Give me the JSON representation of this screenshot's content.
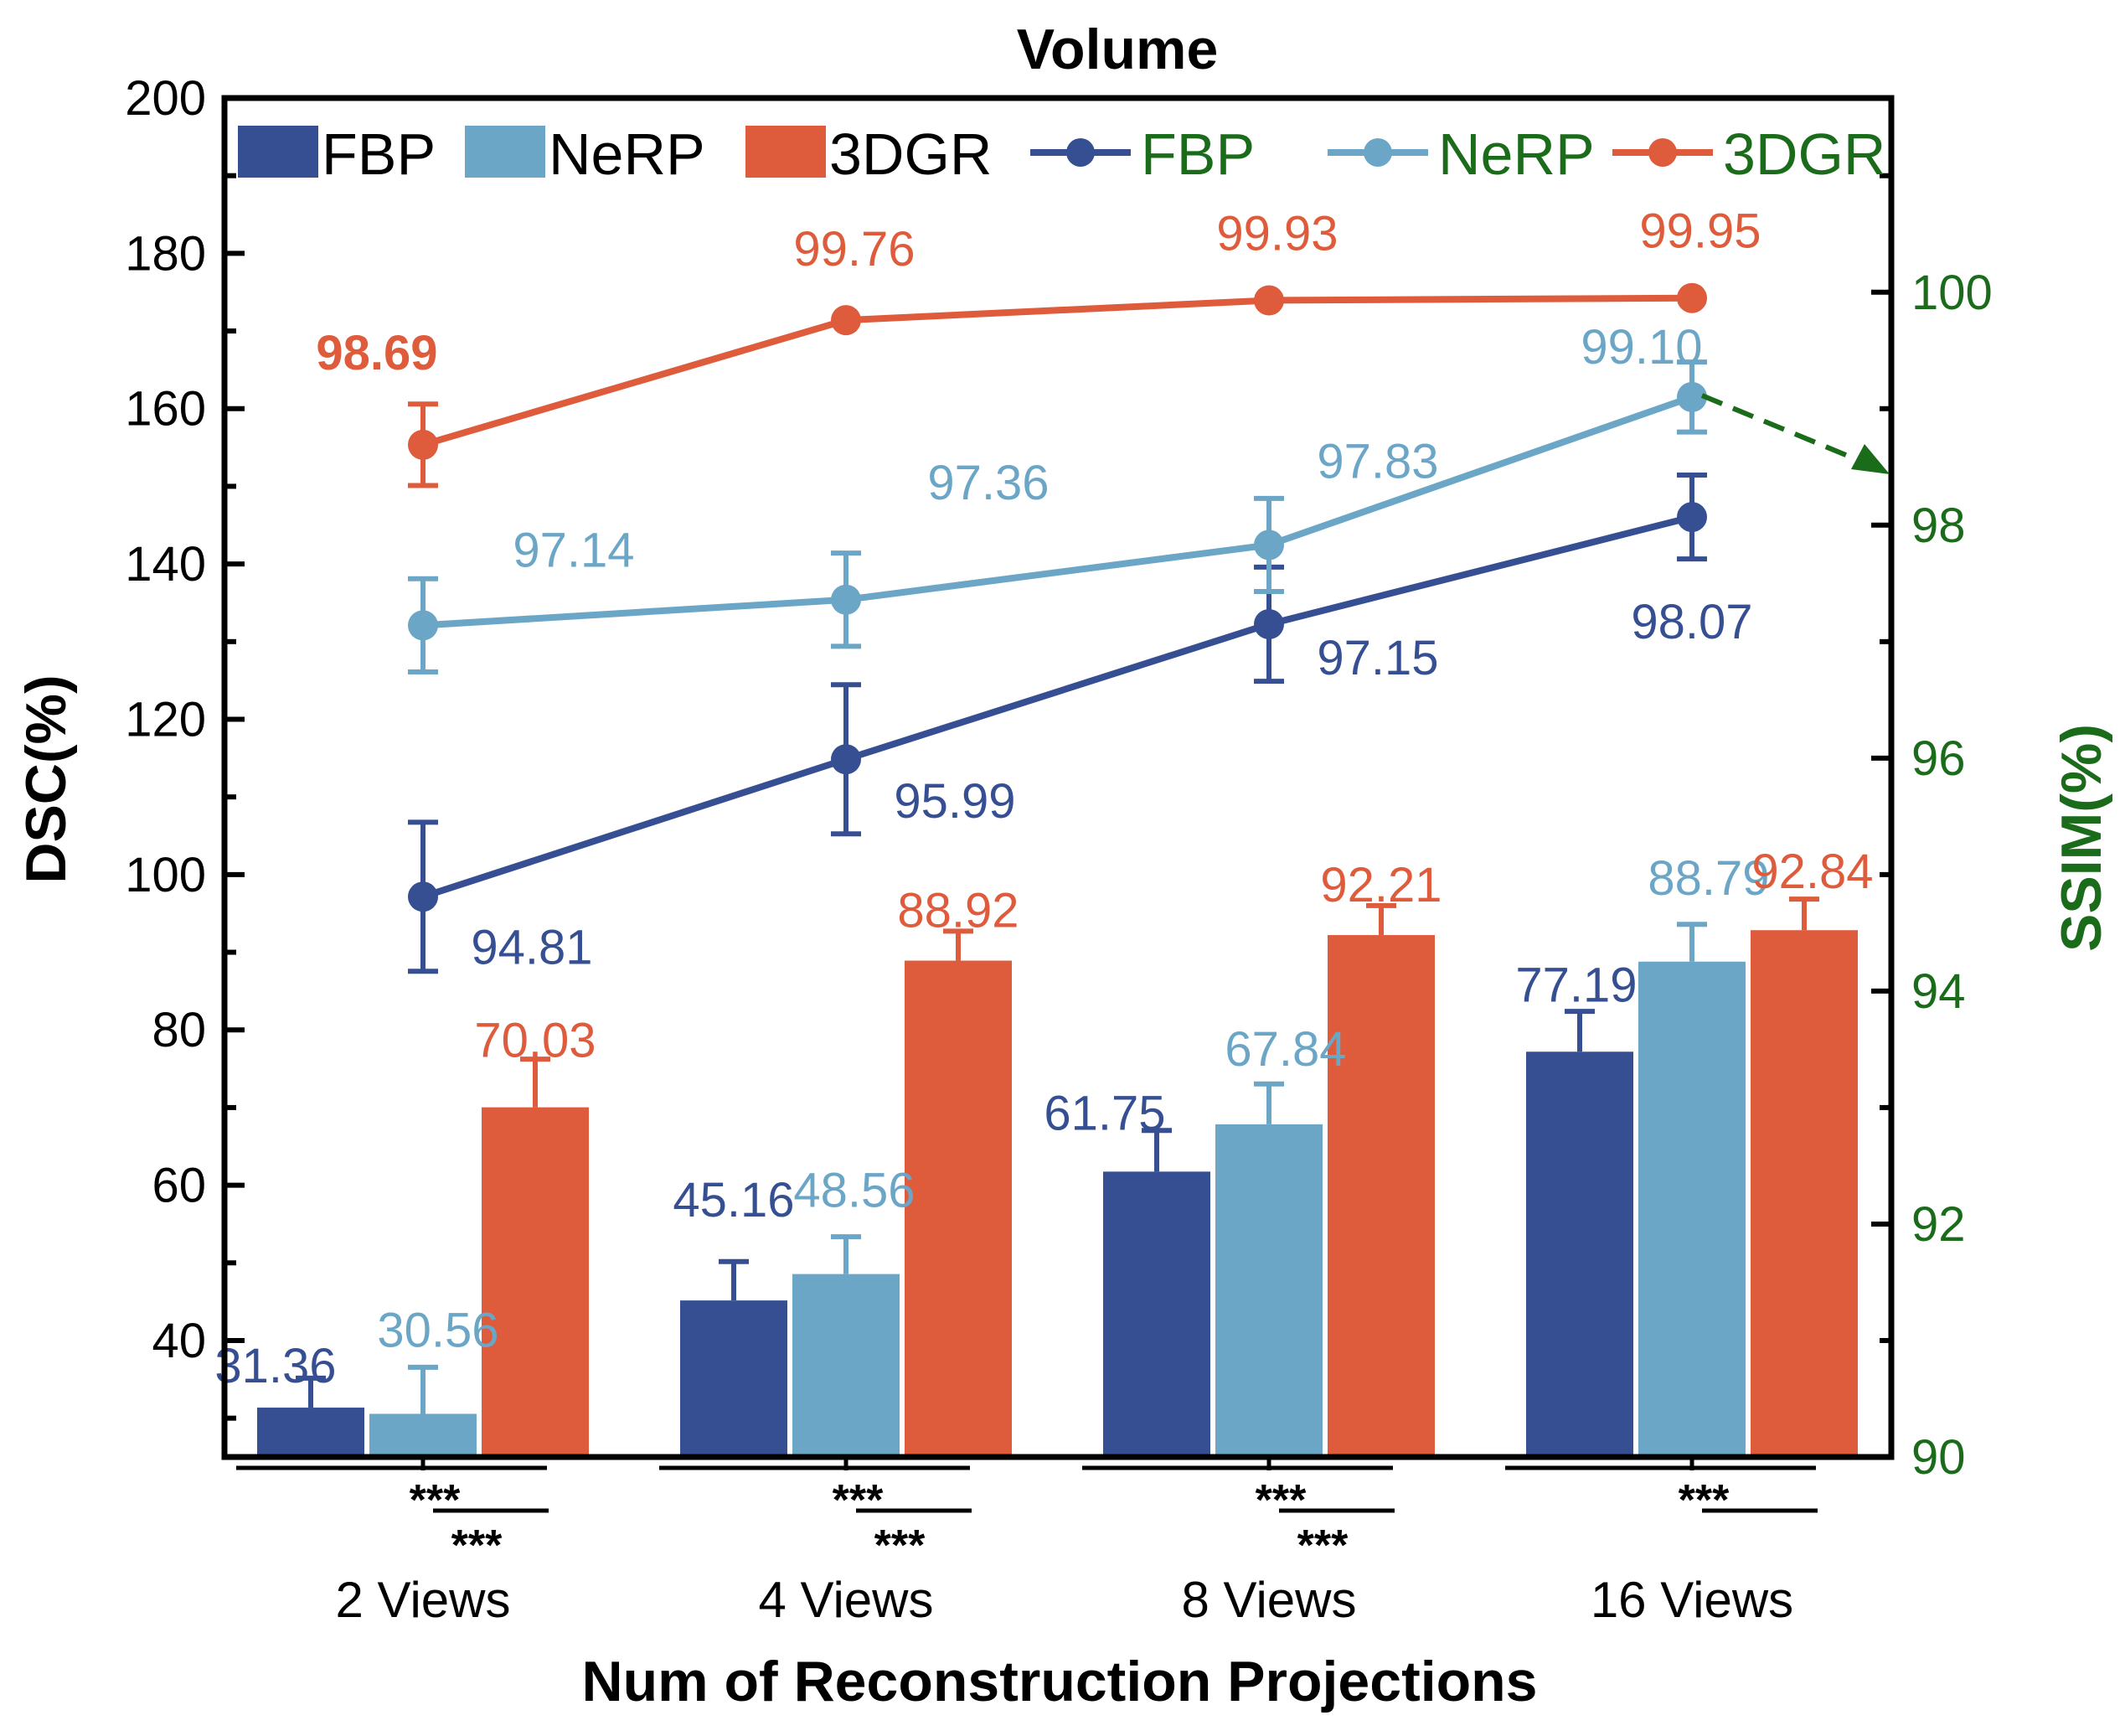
{
  "chart_data": {
    "type": "bar",
    "title": "Volume",
    "xlabel": "Num of Reconstruction Projections",
    "ylabel": "DSC(%)",
    "y2label": "SSIM(%)",
    "categories": [
      "2 Views",
      "4 Views",
      "8 Views",
      "16 Views"
    ],
    "ylim": [
      25,
      200
    ],
    "yticks": [
      40,
      60,
      80,
      100,
      120,
      140,
      160,
      180,
      200
    ],
    "y2lim": [
      90,
      101.667
    ],
    "y2ticks": [
      90,
      92,
      94,
      96,
      98,
      100
    ],
    "bar_series": [
      {
        "name": "FBP",
        "color": "#364f93",
        "values": [
          31.36,
          45.16,
          61.75,
          77.19
        ],
        "labels": [
          "31.36",
          "45.16",
          "61.75",
          "77.19"
        ],
        "err": [
          3.8,
          5.0,
          5.3,
          5.2
        ]
      },
      {
        "name": "NeRP",
        "color": "#6ca6c7",
        "values": [
          30.56,
          48.56,
          67.84,
          88.79
        ],
        "labels": [
          "30.56",
          "48.56",
          "67.84",
          "88.79"
        ],
        "err": [
          6.0,
          4.8,
          5.2,
          4.8
        ]
      },
      {
        "name": "3DGR",
        "color": "#de5b3c",
        "values": [
          70.03,
          88.92,
          92.21,
          92.84
        ],
        "labels": [
          "70.03",
          "88.92",
          "92.21",
          "92.84"
        ],
        "err": [
          6.2,
          3.8,
          3.8,
          4.0
        ]
      }
    ],
    "line_series": [
      {
        "name": "FBP",
        "color": "#364f93",
        "values": [
          94.81,
          95.99,
          97.15,
          98.07
        ],
        "labels": [
          "94.81",
          "95.99",
          "97.15",
          "98.07"
        ],
        "err": [
          0.64,
          0.64,
          0.49,
          0.36
        ]
      },
      {
        "name": "NeRP",
        "color": "#6ca6c7",
        "values": [
          97.14,
          97.36,
          97.83,
          99.1
        ],
        "labels": [
          "97.14",
          "97.36",
          "97.83",
          "99.10"
        ],
        "err": [
          0.4,
          0.4,
          0.4,
          0.3
        ]
      },
      {
        "name": "3DGR",
        "color": "#de5b3c",
        "values": [
          98.69,
          99.76,
          99.93,
          99.95
        ],
        "labels": [
          "98.69",
          "99.76",
          "99.93",
          "99.95"
        ],
        "err": [
          0.35,
          0.0,
          0.0,
          0.0
        ]
      }
    ],
    "legend": {
      "bar_entries": [
        "FBP",
        "NeRP",
        "3DGR"
      ],
      "line_entries": [
        "FBP",
        "NeRP",
        "3DGR"
      ],
      "line_text_color": "#1a6b1a",
      "placement": "top"
    },
    "significance": [
      {
        "group": "2 Views",
        "marks": [
          "***",
          "***"
        ]
      },
      {
        "group": "4 Views",
        "marks": [
          "***",
          "***"
        ]
      },
      {
        "group": "8 Views",
        "marks": [
          "***",
          "***"
        ]
      },
      {
        "group": "16 Views",
        "marks": [
          "***"
        ]
      }
    ],
    "right_axis_color": "#1a6b1a"
  }
}
